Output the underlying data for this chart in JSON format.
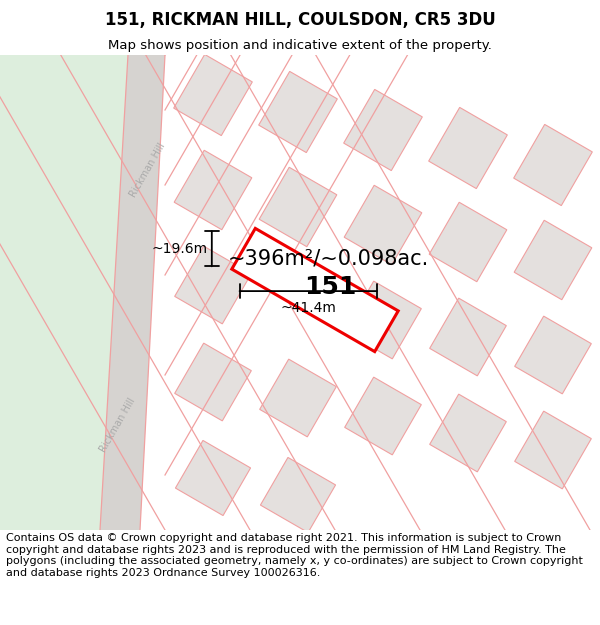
{
  "title": "151, RICKMAN HILL, COULSDON, CR5 3DU",
  "subtitle": "Map shows position and indicative extent of the property.",
  "footer": "Contains OS data © Crown copyright and database right 2021. This information is subject to Crown copyright and database rights 2023 and is reproduced with the permission of HM Land Registry. The polygons (including the associated geometry, namely x, y co-ordinates) are subject to Crown copyright and database rights 2023 Ordnance Survey 100026316.",
  "map_bg": "#f8f5f3",
  "green_color": "#ddeedd",
  "road_fill": "#d6d3d0",
  "road_edge_color": "#f0a0a0",
  "plot_fill": "#e4e0de",
  "plot_edge": "#f0a0a0",
  "highlight_edge": "#ee0000",
  "highlight_fill": "#ffffff",
  "area_text": "~396m²/~0.098ac.",
  "width_text": "~41.4m",
  "height_text": "~19.6m",
  "label_151": "151",
  "street_label": "Rickman Hill",
  "street_label2": "Rickman Hill",
  "title_fontsize": 12,
  "subtitle_fontsize": 9.5,
  "footer_fontsize": 8,
  "area_fontsize": 15,
  "dim_fontsize": 10,
  "label_fontsize": 18,
  "street_fontsize": 7,
  "map_rotation_deg": -30
}
